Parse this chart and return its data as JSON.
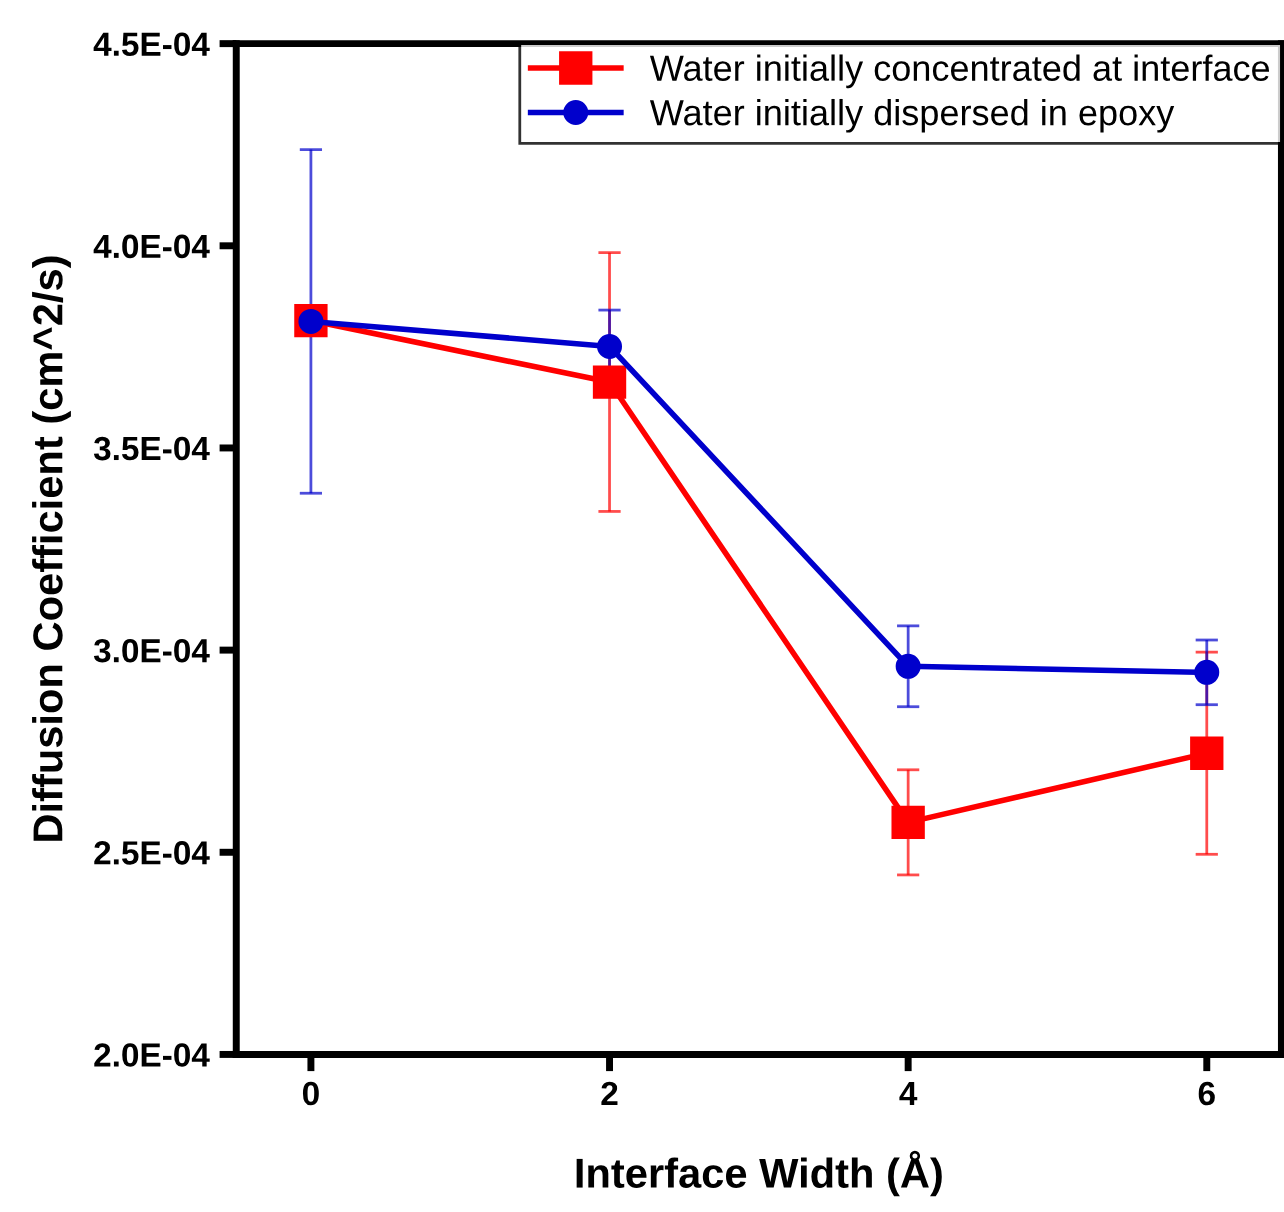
{
  "chart_data": {
    "type": "line",
    "xlabel": "Interface Width (Å)",
    "ylabel": "Diffusion Coefficient (cm^2/s)",
    "x": [
      0,
      2,
      4,
      6
    ],
    "series": [
      {
        "name": "Water initially concentrated at interface",
        "color": "#ff0000",
        "marker": "square",
        "values": [
          0.0003815,
          0.0003663,
          0.0002574,
          0.0002745
        ],
        "errors": [
          null,
          3.2e-05,
          1.3e-05,
          2.5e-05
        ]
      },
      {
        "name": "Water initially dispersed in epoxy",
        "color": "#0000cc",
        "marker": "circle",
        "values": [
          0.0003813,
          0.0003751,
          0.000296,
          0.0002945
        ],
        "errors": [
          4.25e-05,
          9e-06,
          1e-05,
          8e-06
        ]
      }
    ],
    "xlim": [
      -0.5,
      6.5
    ],
    "xticks": [
      0,
      2,
      4,
      6
    ],
    "ylim": [
      0.0002,
      0.00045
    ],
    "yticks": [
      {
        "value": 0.0002,
        "label": "2.0E-04"
      },
      {
        "value": 0.00025,
        "label": "2.5E-04"
      },
      {
        "value": 0.0003,
        "label": "3.0E-04"
      },
      {
        "value": 0.00035,
        "label": "3.5E-04"
      },
      {
        "value": 0.0004,
        "label": "4.0E-04"
      },
      {
        "value": 0.00045,
        "label": "4.5E-04"
      }
    ],
    "legend": "top right",
    "grid": false,
    "line_style": "solid"
  }
}
